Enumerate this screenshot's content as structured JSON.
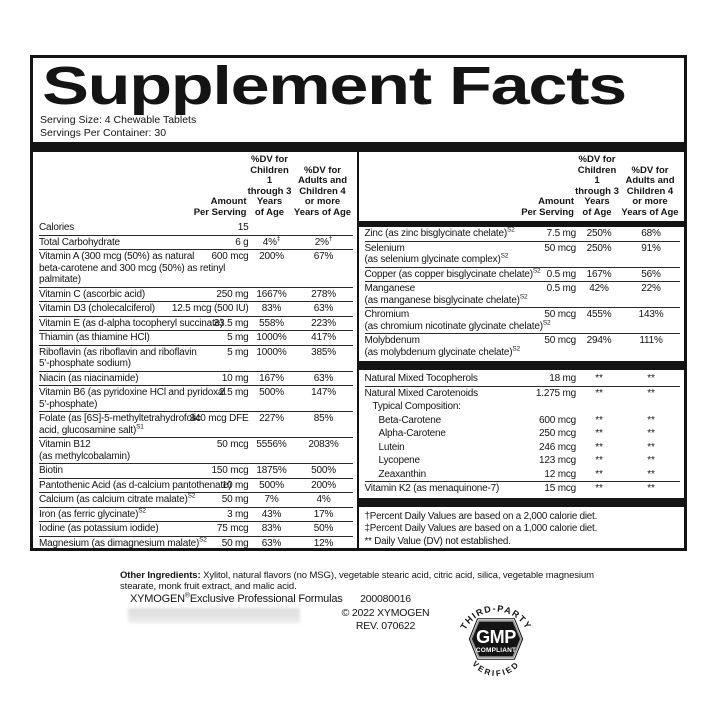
{
  "title": "Supplement Facts",
  "serving_size": "Serving Size: 4 Chewable Tablets",
  "servings_per_container": "Servings Per Container: 30",
  "column_headers": {
    "amount": "Amount\nPer Serving",
    "dv_children": "%DV for\nChildren 1\nthrough 3\nYears\nof Age",
    "dv_adults": "%DV for\nAdults and\nChildren 4\nor more\nYears of Age"
  },
  "left_rows": [
    {
      "lines": [
        "Calories"
      ],
      "amount": "15",
      "dv1": "",
      "dv2": "",
      "sep": true
    },
    {
      "lines": [
        "Total Carbohydrate"
      ],
      "amount": "6 g",
      "dv1": "4%",
      "dv1sup": "‡",
      "dv2": "2%",
      "dv2sup": "†",
      "sep": true
    },
    {
      "lines": [
        "Vitamin A (300 mcg (50%) as natural",
        "beta-carotene and 300 mcg (50%) as retinyl",
        "palmitate)"
      ],
      "amount": "600 mcg",
      "dv1": "200%",
      "dv2": "67%",
      "sep": true
    },
    {
      "lines": [
        "Vitamin C (ascorbic acid)"
      ],
      "amount": "250 mg",
      "dv1": "1667%",
      "dv2": "278%",
      "sep": true
    },
    {
      "lines": [
        "Vitamin D3 (cholecalciferol)"
      ],
      "amount": "12.5 mcg (500 IU)",
      "dv1": "83%",
      "dv2": "63%",
      "sep": true
    },
    {
      "lines": [
        "Vitamin E (as d-alpha tocopheryl succinate)"
      ],
      "amount": "33.5 mg",
      "dv1": "558%",
      "dv2": "223%",
      "sep": true
    },
    {
      "lines": [
        "Thiamin (as thiamine HCl)"
      ],
      "amount": "5 mg",
      "dv1": "1000%",
      "dv2": "417%",
      "sep": true
    },
    {
      "lines": [
        "Riboflavin (as riboflavin and riboflavin",
        "5'-phosphate sodium)"
      ],
      "amount": "5 mg",
      "dv1": "1000%",
      "dv2": "385%",
      "sep": true
    },
    {
      "lines": [
        "Niacin (as niacinamide)"
      ],
      "amount": "10 mg",
      "dv1": "167%",
      "dv2": "63%",
      "sep": true
    },
    {
      "lines": [
        "Vitamin B6 (as pyridoxine HCl and pyridoxal",
        "5'-phosphate)"
      ],
      "amount": "2.5 mg",
      "dv1": "500%",
      "dv2": "147%",
      "sep": true
    },
    {
      "lines": [
        "Folate (as [6S]-5-methyltetrahydrofolic",
        "acid, glucosamine salt)"
      ],
      "sup": "S1",
      "amount": "340 mcg DFE",
      "dv1": "227%",
      "dv2": "85%",
      "sep": true
    },
    {
      "lines": [
        "Vitamin B12",
        "(as methylcobalamin)"
      ],
      "amount": "50 mcg",
      "dv1": "5556%",
      "dv2": "2083%",
      "sep": true
    },
    {
      "lines": [
        "Biotin"
      ],
      "amount": "150 mcg",
      "dv1": "1875%",
      "dv2": "500%",
      "sep": true
    },
    {
      "lines": [
        "Pantothenic Acid (as d-calcium pantothenate)"
      ],
      "amount": "10 mg",
      "dv1": "500%",
      "dv2": "200%",
      "sep": true
    },
    {
      "lines": [
        "Calcium (as calcium citrate malate)"
      ],
      "sup": "S2",
      "amount": "50 mg",
      "dv1": "7%",
      "dv2": "4%",
      "sep": true
    },
    {
      "lines": [
        "Iron (as ferric glycinate)"
      ],
      "sup": "S2",
      "amount": "3 mg",
      "dv1": "43%",
      "dv2": "17%",
      "sep": true
    },
    {
      "lines": [
        "Iodine (as potassium iodide)"
      ],
      "amount": "75 mcg",
      "dv1": "83%",
      "dv2": "50%",
      "sep": true
    },
    {
      "lines": [
        "Magnesium (as dimagnesium malate)"
      ],
      "sup": "S2",
      "amount": "50 mg",
      "dv1": "63%",
      "dv2": "12%",
      "sep": false
    }
  ],
  "right_rows": [
    {
      "lines": [
        "Zinc (as zinc bisglycinate chelate)"
      ],
      "sup": "S2",
      "amount": "7.5 mg",
      "dv1": "250%",
      "dv2": "68%",
      "sep": true
    },
    {
      "lines": [
        "Selenium",
        "(as selenium glycinate complex)"
      ],
      "sup": "S2",
      "amount": "50 mcg",
      "dv1": "250%",
      "dv2": "91%",
      "sep": true
    },
    {
      "lines": [
        "Copper (as copper bisglycinate chelate)"
      ],
      "sup": "S2",
      "amount": "0.5 mg",
      "dv1": "167%",
      "dv2": "56%",
      "sep": true
    },
    {
      "lines": [
        "Manganese",
        "(as manganese bisglycinate chelate)"
      ],
      "sup": "S2",
      "amount": "0.5 mg",
      "dv1": "42%",
      "dv2": "22%",
      "sep": true
    },
    {
      "lines": [
        "Chromium",
        "(as chromium nicotinate glycinate chelate)"
      ],
      "sup": "S2",
      "amount": "50 mcg",
      "dv1": "455%",
      "dv2": "143%",
      "sep": true
    },
    {
      "lines": [
        "Molybdenum",
        "(as molybdenum glycinate chelate)"
      ],
      "sup": "S2",
      "amount": "50 mcg",
      "dv1": "294%",
      "dv2": "111%",
      "sep": false
    },
    {
      "type": "bar"
    },
    {
      "lines": [
        "Natural Mixed Tocopherols"
      ],
      "amount": "18 mg",
      "dv1": "**",
      "dv2": "**",
      "sep": true
    },
    {
      "lines": [
        "Natural Mixed Carotenoids"
      ],
      "amount": "1.275 mg",
      "dv1": "**",
      "dv2": "**",
      "sep": false
    },
    {
      "lines": [
        "Typical Composition:"
      ],
      "amount": "",
      "dv1": "",
      "dv2": "",
      "indent": 8,
      "sep": false
    },
    {
      "lines": [
        "Beta-Carotene"
      ],
      "amount": "600 mcg",
      "dv1": "**",
      "dv2": "**",
      "indent": 14,
      "sep": false
    },
    {
      "lines": [
        "Alpha-Carotene"
      ],
      "amount": "250 mcg",
      "dv1": "**",
      "dv2": "**",
      "indent": 14,
      "sep": false
    },
    {
      "lines": [
        "Lutein"
      ],
      "amount": "246 mcg",
      "dv1": "**",
      "dv2": "**",
      "indent": 14,
      "sep": false
    },
    {
      "lines": [
        "Lycopene"
      ],
      "amount": "123 mcg",
      "dv1": "**",
      "dv2": "**",
      "indent": 14,
      "sep": false
    },
    {
      "lines": [
        "Zeaxanthin"
      ],
      "amount": "12 mcg",
      "dv1": "**",
      "dv2": "**",
      "indent": 14,
      "sep": true
    },
    {
      "lines": [
        "Vitamin K2 (as menaquinone-7)"
      ],
      "amount": "15 mcg",
      "dv1": "**",
      "dv2": "**",
      "sep": false
    },
    {
      "type": "bar"
    }
  ],
  "footnotes": [
    "†Percent Daily Values are based on a 2,000 calorie diet.",
    "‡Percent Daily Values are based on a 1,000 calorie diet.",
    "** Daily Value (DV) not established."
  ],
  "other_ingredients": {
    "label": "Other Ingredients:",
    "text": " Xylitol, natural flavors (no MSG), vegetable stearic acid, citric acid, silica, vegetable magnesium stearate, monk fruit extract, and malic acid."
  },
  "footer": {
    "brand": "XYMOGEN",
    "registered_mark": "®",
    "tagline": "Exclusive Professional Formulas",
    "product_code": "200080016",
    "copyright": "© 2022 XYMOGEN",
    "revision": "REV. 070622"
  },
  "badge": {
    "top": "THIRD-PARTY",
    "gmp": "GMP",
    "compliant": "COMPLIANT",
    "bottom": "VERIFIED"
  },
  "colors": {
    "ink": "#141414",
    "background": "#ffffff"
  }
}
